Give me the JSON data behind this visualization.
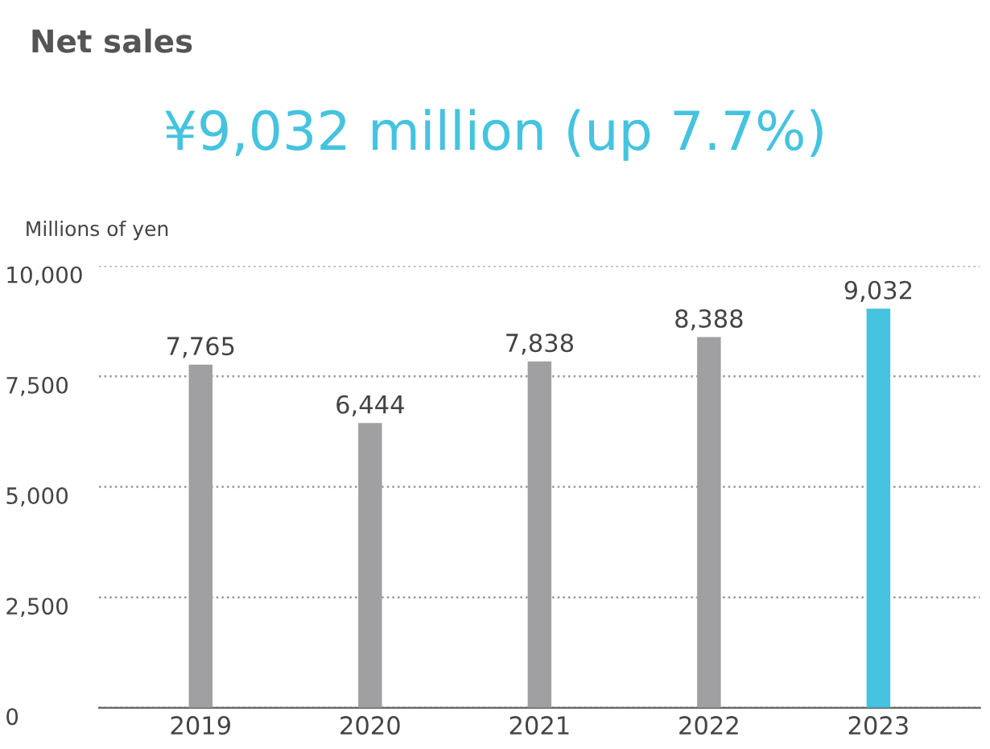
{
  "chart_data": {
    "type": "bar",
    "title": "Net sales",
    "subtitle": "¥9,032 million (up 7.7%)",
    "ylabel": "Millions of yen",
    "categories": [
      "2019",
      "2020",
      "2021",
      "2022",
      "2023"
    ],
    "values": [
      7765,
      6444,
      7838,
      8388,
      9032
    ],
    "colors": [
      "#a0a0a2",
      "#a0a0a2",
      "#a0a0a2",
      "#a0a0a2",
      "#45c3df"
    ],
    "value_labels": [
      "7,765",
      "6,444",
      "7,838",
      "8,388",
      "9,032"
    ],
    "ylim": [
      0,
      10000
    ],
    "yticks": [
      0,
      {
        "value": 2500,
        "label": "2,500"
      },
      {
        "value": 5000,
        "label": "5,000"
      },
      {
        "value": 7500,
        "label": "7,500"
      },
      {
        "value": 10000,
        "label": "10,000"
      }
    ],
    "grid": "y",
    "legend": false
  }
}
